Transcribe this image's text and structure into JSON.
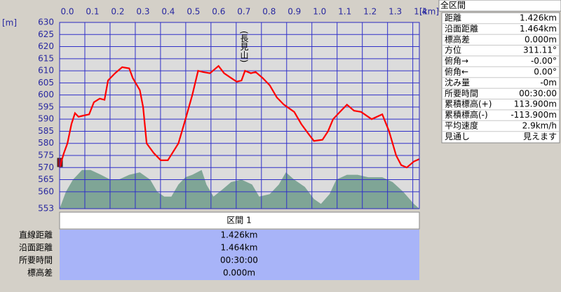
{
  "chart_data": {
    "type": "line",
    "x_unit": "[km]",
    "y_unit": "[m]",
    "annotation": "(長見山)",
    "xlim": [
      0,
      1.426
    ],
    "ylim": [
      553,
      630
    ],
    "xticks": [
      {
        "value": 0,
        "label": "0.0"
      },
      0.1,
      0.2,
      0.3,
      0.4,
      0.5,
      0.6,
      0.7,
      0.8,
      0.9,
      {
        "value": 1,
        "label": "1.0"
      },
      1.1,
      1.2,
      1.3,
      1.4
    ],
    "yticks": [
      553,
      560,
      565,
      570,
      575,
      580,
      585,
      590,
      595,
      600,
      605,
      610,
      615,
      620,
      625,
      630
    ],
    "grid": true,
    "series": [
      {
        "style": "area",
        "color": "#7fa596",
        "x": [
          0,
          0.025,
          0.053,
          0.089,
          0.123,
          0.164,
          0.201,
          0.234,
          0.276,
          0.318,
          0.359,
          0.387,
          0.415,
          0.443,
          0.471,
          0.499,
          0.526,
          0.563,
          0.582,
          0.61,
          0.646,
          0.68,
          0.721,
          0.763,
          0.791,
          0.833,
          0.869,
          0.897,
          0.93,
          0.972,
          1.008,
          1.036,
          1.07,
          1.097,
          1.139,
          1.181,
          1.223,
          1.279,
          1.32,
          1.362,
          1.404,
          1.426
        ],
        "values": [
          553,
          560,
          565,
          569,
          569,
          567,
          565,
          565,
          567,
          568,
          565,
          560,
          558,
          558,
          563,
          566,
          567,
          569,
          563,
          558,
          561,
          564,
          565,
          563,
          558,
          559,
          563,
          568,
          565,
          562,
          557,
          555,
          559,
          565,
          567,
          567,
          566,
          566,
          564,
          560,
          555,
          553
        ]
      },
      {
        "style": "line",
        "color": "#ff0000",
        "x": [
          0,
          0.017,
          0.031,
          0.047,
          0.061,
          0.075,
          0.095,
          0.117,
          0.136,
          0.159,
          0.178,
          0.192,
          0.22,
          0.248,
          0.276,
          0.29,
          0.318,
          0.331,
          0.345,
          0.373,
          0.401,
          0.429,
          0.471,
          0.499,
          0.526,
          0.549,
          0.568,
          0.596,
          0.63,
          0.652,
          0.68,
          0.702,
          0.721,
          0.735,
          0.758,
          0.777,
          0.805,
          0.833,
          0.861,
          0.889,
          0.93,
          0.958,
          0.986,
          1.008,
          1.042,
          1.064,
          1.084,
          1.111,
          1.139,
          1.167,
          1.195,
          1.237,
          1.279,
          1.306,
          1.334,
          1.354,
          1.376,
          1.404,
          1.426
        ],
        "values": [
          570,
          576,
          580,
          588,
          592.5,
          591,
          591.5,
          592,
          597,
          598.5,
          598,
          606,
          609,
          611.5,
          611,
          607,
          602,
          595,
          580,
          576,
          573,
          573,
          580,
          590,
          600,
          610,
          609.5,
          609,
          612,
          609,
          607,
          605.5,
          606,
          610,
          609,
          609.5,
          607,
          604,
          599,
          596,
          593,
          588,
          584,
          581,
          581.5,
          585,
          590,
          593,
          596,
          593.5,
          593,
          590,
          592,
          585,
          575,
          571,
          570,
          572.5,
          573.5
        ]
      }
    ]
  },
  "summary_panel": {
    "title": "全区間",
    "rows": [
      [
        "距離",
        "1.426km"
      ],
      [
        "沿面距離",
        "1.464km"
      ],
      [
        "標高差",
        "0.000m"
      ],
      [
        "方位",
        "311.11°"
      ],
      [
        "俯角→",
        "-0.00°"
      ],
      [
        "俯角←",
        "0.00°"
      ],
      [
        "沈み量",
        "-0m"
      ],
      [
        "所要時間",
        "00:30:00"
      ],
      [
        "累積標高(+)",
        "113.900m"
      ],
      [
        "累積標高(-)",
        "-113.900m"
      ],
      [
        "平均速度",
        "2.9km/h"
      ],
      [
        "見通し",
        "見えます"
      ]
    ]
  },
  "section_panel": {
    "title": "区間 1",
    "rows": [
      [
        "直線距離",
        "1.426km"
      ],
      [
        "沿面距離",
        "1.464km"
      ],
      [
        "所要時間",
        "00:30:00"
      ],
      [
        "標高差",
        "0.000m"
      ]
    ]
  }
}
